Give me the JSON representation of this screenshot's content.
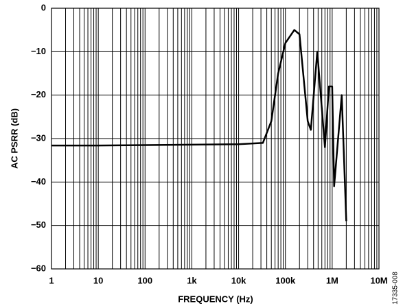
{
  "chart_data": {
    "type": "line",
    "x_label": "FREQUENCY (Hz)",
    "y_label": "AC PSRR (dB)",
    "figure_id": "17335-008",
    "log_x": true,
    "grid": true,
    "xlim": [
      1,
      10000000
    ],
    "xticks": [
      1,
      10,
      100,
      {
        "value": 1000,
        "label": "1k"
      },
      {
        "value": 10000,
        "label": "10k"
      },
      {
        "value": 100000,
        "label": "100k"
      },
      {
        "value": 1000000,
        "label": "1M"
      },
      {
        "value": 10000000,
        "label": "10M"
      }
    ],
    "ylim": [
      -60,
      0
    ],
    "yticks": [
      {
        "value": -60,
        "label": "−60"
      },
      {
        "value": -50,
        "label": "−50"
      },
      {
        "value": -40,
        "label": "−40"
      },
      {
        "value": -30,
        "label": "−30"
      },
      {
        "value": -20,
        "label": "−20"
      },
      {
        "value": -10,
        "label": "−10"
      },
      0
    ],
    "series": [
      {
        "color": "#000000",
        "x": [
          1,
          10,
          10000,
          33000,
          50000,
          70000,
          100000,
          155000,
          200000,
          300000,
          350000,
          480000,
          700000,
          850000,
          1000000,
          1100000,
          1600000,
          2000000
        ],
        "values": [
          -31.6,
          -31.6,
          -31.3,
          -31,
          -26,
          -15,
          -8,
          -5,
          -6,
          -26,
          -28,
          -10,
          -32,
          -18,
          -18,
          -41,
          -20,
          -49
        ]
      }
    ]
  }
}
